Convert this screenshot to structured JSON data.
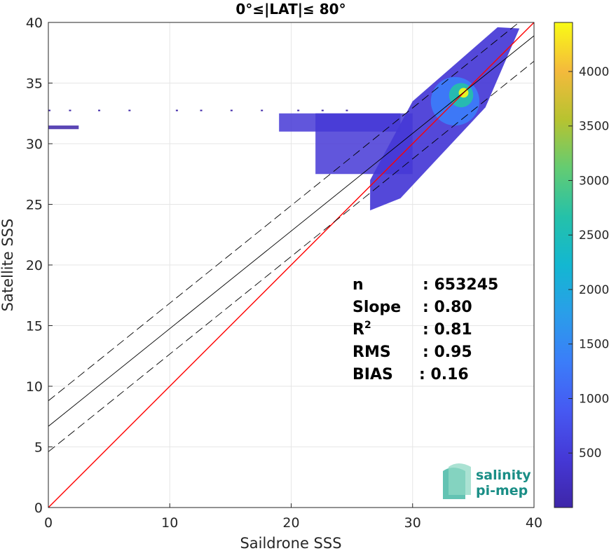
{
  "chart_data": {
    "type": "scatter",
    "title": "0°≤|LAT|≤ 80°",
    "xlabel": "Saildrone SSS",
    "ylabel": "Satellite SSS",
    "xlim": [
      0,
      40
    ],
    "ylim": [
      0,
      40
    ],
    "xticks": [
      "0",
      "10",
      "20",
      "30",
      "40"
    ],
    "yticks": [
      "0",
      "5",
      "10",
      "15",
      "20",
      "25",
      "30",
      "35",
      "40"
    ],
    "grid": true,
    "colorbar": {
      "range": [
        0,
        4450
      ],
      "ticks": [
        "500",
        "1000",
        "1500",
        "2000",
        "2500",
        "3000",
        "3500",
        "4000"
      ],
      "colormap": "parula"
    },
    "lines": [
      {
        "name": "identity",
        "color": "#ff0000",
        "style": "solid",
        "points": [
          [
            0,
            0
          ],
          [
            40,
            40
          ]
        ]
      },
      {
        "name": "regression",
        "color": "#000000",
        "style": "solid",
        "points": [
          [
            0,
            6.7
          ],
          [
            40,
            38.9
          ]
        ]
      },
      {
        "name": "upper-bound",
        "color": "#000000",
        "style": "dashed",
        "points": [
          [
            0,
            8.8
          ],
          [
            40,
            41.0
          ]
        ]
      },
      {
        "name": "lower-bound",
        "color": "#000000",
        "style": "dashed",
        "points": [
          [
            0,
            4.6
          ],
          [
            40,
            36.8
          ]
        ]
      }
    ],
    "density_regions": [
      {
        "x": [
          26.5,
          38.5
        ],
        "y": [
          25.5,
          39.5
        ],
        "level": 500
      },
      {
        "x": [
          22.0,
          30.0
        ],
        "y": [
          27.5,
          32.5
        ],
        "level": 300
      },
      {
        "x": [
          19.0,
          29.0
        ],
        "y": [
          31.0,
          32.5
        ],
        "level": 250
      },
      {
        "x": [
          0.0,
          2.5
        ],
        "y": [
          31.2,
          31.5
        ],
        "level": 200
      },
      {
        "x": [
          31.5,
          35.5
        ],
        "y": [
          31.5,
          35.5
        ],
        "level": 1500
      },
      {
        "x": [
          33.0,
          35.0
        ],
        "y": [
          33.0,
          35.0
        ],
        "level": 2800
      },
      {
        "x": [
          33.8,
          34.6
        ],
        "y": [
          33.8,
          34.6
        ],
        "level": 4300
      }
    ],
    "stats": [
      {
        "label": "n",
        "value": ": 653245"
      },
      {
        "label": "Slope",
        "value": ": 0.80"
      },
      {
        "label": "R",
        "sup": "2",
        "value": ": 0.81"
      },
      {
        "label": "RMS",
        "value": ": 0.95"
      },
      {
        "label": "BIAS",
        "value": ": 0.16"
      }
    ]
  },
  "logo": {
    "line1": "salinity",
    "line2": "pi-mep"
  },
  "colors": {
    "identity_line": "#ff0000",
    "fit_line": "#000000",
    "grid": "#e6e6e6",
    "logo_teal": "#1a8e86"
  }
}
